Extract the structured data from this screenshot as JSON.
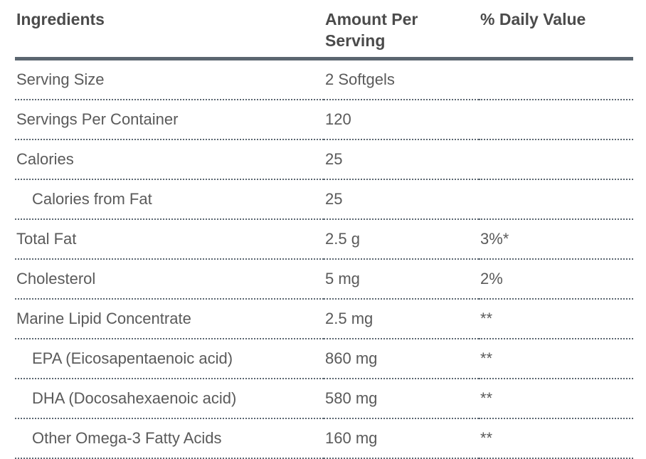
{
  "table": {
    "columns": [
      {
        "label": "Ingredients"
      },
      {
        "label": "Amount Per Serving"
      },
      {
        "label": "% Daily Value"
      }
    ],
    "rows": [
      {
        "ingredient": "Serving Size",
        "amount": "2 Softgels",
        "daily_value": "",
        "indent": false
      },
      {
        "ingredient": "Servings Per Container",
        "amount": "120",
        "daily_value": "",
        "indent": false
      },
      {
        "ingredient": "Calories",
        "amount": "25",
        "daily_value": "",
        "indent": false
      },
      {
        "ingredient": "Calories from Fat",
        "amount": "25",
        "daily_value": "",
        "indent": true
      },
      {
        "ingredient": "Total Fat",
        "amount": "2.5 g",
        "daily_value": "3%*",
        "indent": false
      },
      {
        "ingredient": "Cholesterol",
        "amount": "5 mg",
        "daily_value": "2%",
        "indent": false
      },
      {
        "ingredient": "Marine Lipid Concentrate",
        "amount": "2.5 mg",
        "daily_value": "**",
        "indent": false
      },
      {
        "ingredient": "EPA (Eicosapentaenoic acid)",
        "amount": "860 mg",
        "daily_value": "**",
        "indent": true
      },
      {
        "ingredient": "DHA (Docosahexaenoic acid)",
        "amount": "580 mg",
        "daily_value": "**",
        "indent": true
      },
      {
        "ingredient": "Other Omega-3 Fatty Acids",
        "amount": "160 mg",
        "daily_value": "**",
        "indent": true
      }
    ]
  },
  "colors": {
    "header_rule": "#5b6670",
    "row_divider": "#5b6670",
    "header_text": "#4b4b4b",
    "body_text": "#5a5a5a",
    "background": "#ffffff"
  }
}
